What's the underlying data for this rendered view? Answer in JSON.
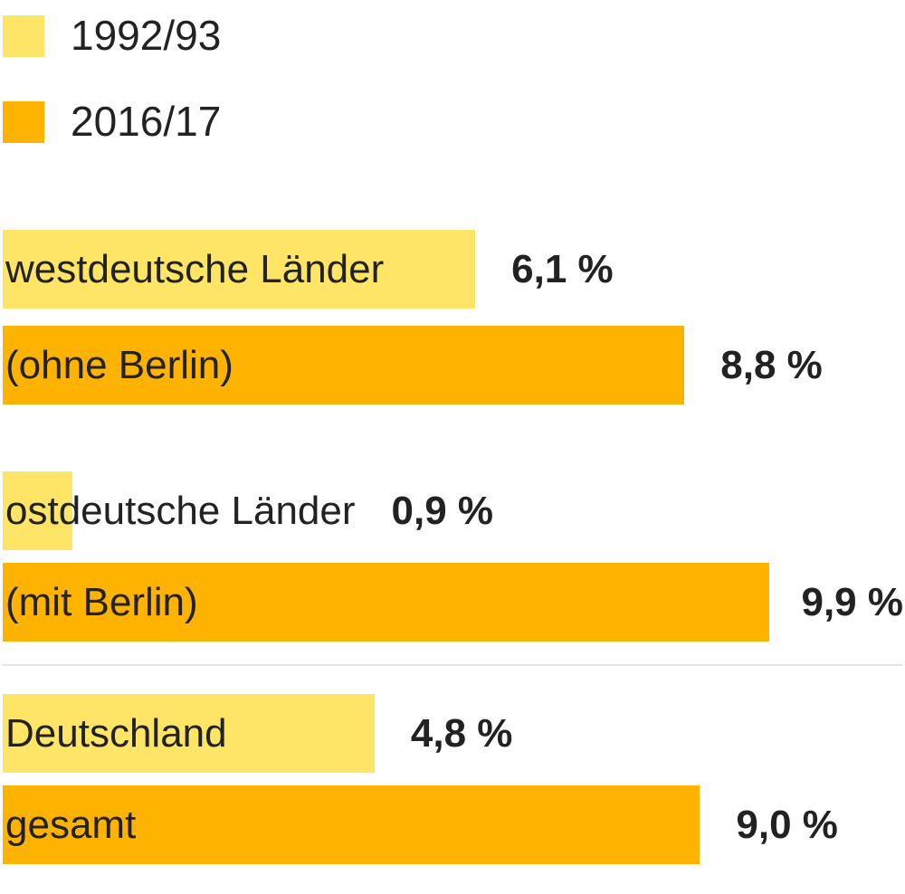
{
  "chart_data": {
    "type": "bar",
    "orientation": "horizontal",
    "categories": [
      "westdeutsche Länder (ohne Berlin)",
      "ostdeutsche Länder (mit Berlin)",
      "Deutschland gesamt"
    ],
    "category_lines": [
      [
        "westdeutsche Länder",
        "(ohne Berlin)"
      ],
      [
        "ostdeutsche Länder",
        "(mit Berlin)"
      ],
      [
        "Deutschland",
        "gesamt"
      ]
    ],
    "series": [
      {
        "name": "1992/93",
        "color": "#fee566",
        "values": [
          6.1,
          0.9,
          4.8
        ],
        "labels": [
          "6,1 %",
          "0,9 %",
          "4,8 %"
        ]
      },
      {
        "name": "2016/17",
        "color": "#fdb300",
        "values": [
          8.8,
          9.9,
          9.0
        ],
        "labels": [
          "8,8 %",
          "9,9 %",
          "9,0 %"
        ]
      }
    ],
    "unit": "%",
    "xlim": [
      0,
      11.5
    ],
    "legend_position": "top-left",
    "grid": false
  }
}
